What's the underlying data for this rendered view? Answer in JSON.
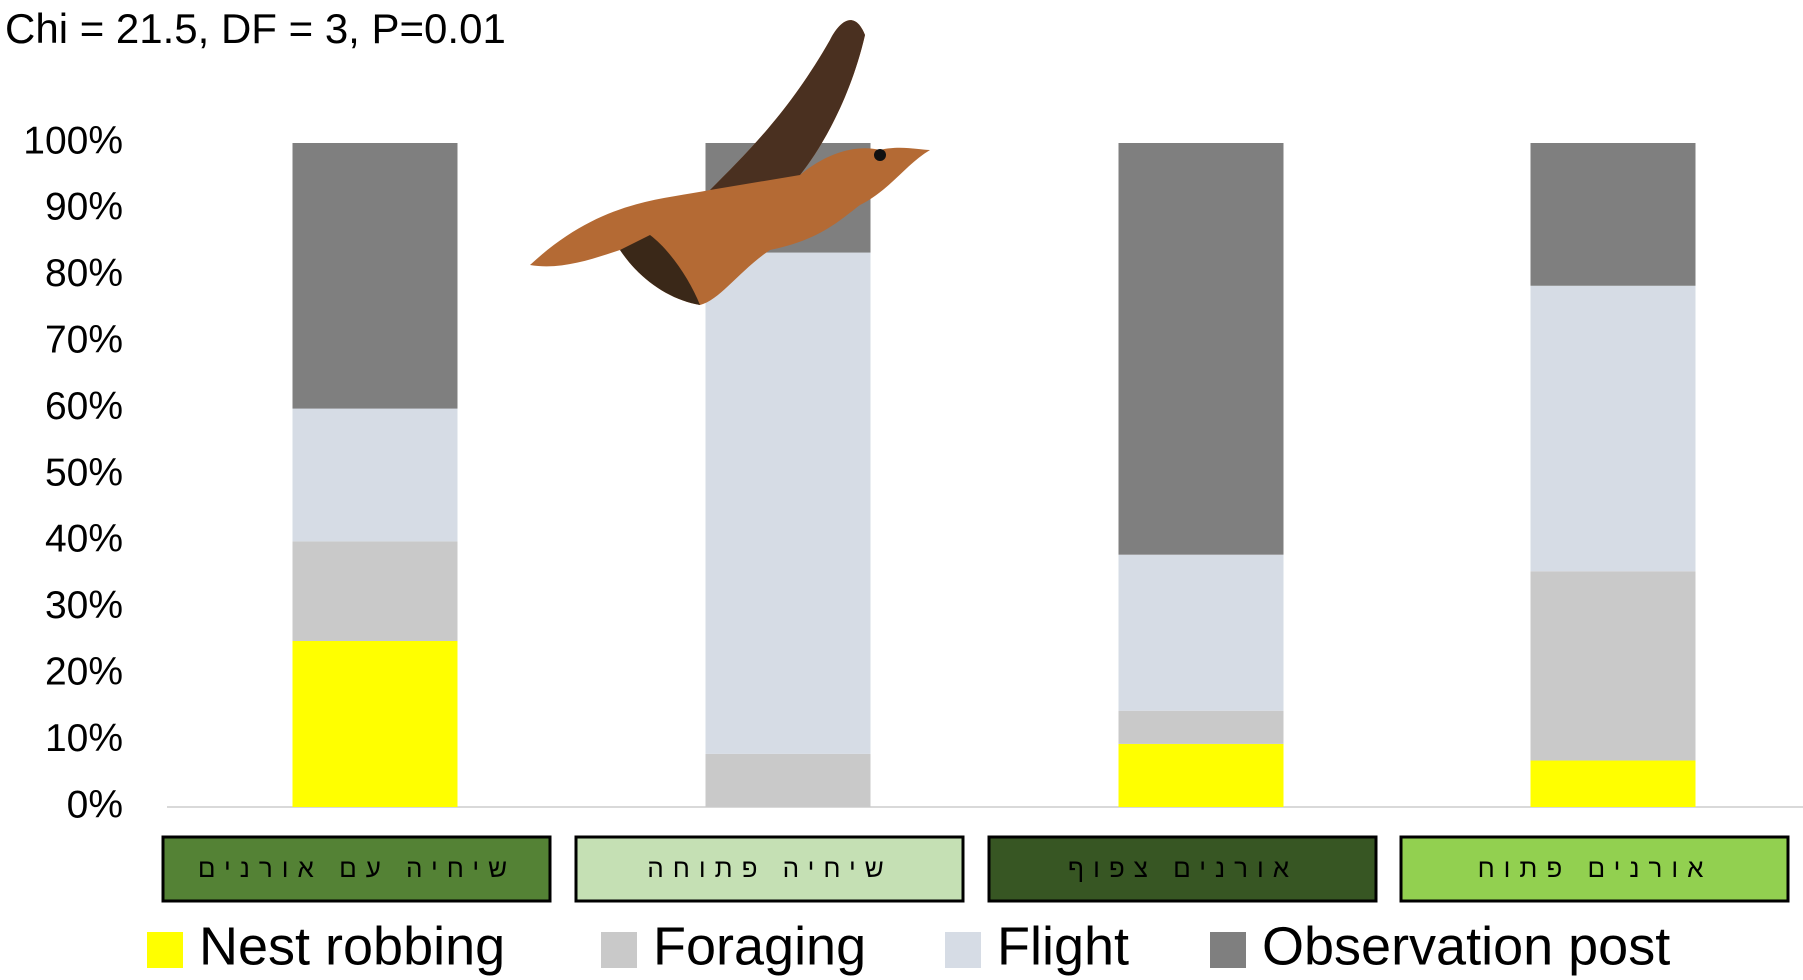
{
  "chart_data": {
    "type": "stacked_bar",
    "title": "Chi = 21.5, DF = 3, P=0.01",
    "categories": [
      "שיחיה עם אורנים",
      "שיחיה פתוחה",
      "אורנים צפוף",
      "אורנים פתוח"
    ],
    "category_colors": [
      "#548235",
      "#c5e0b4",
      "#375623",
      "#92d050"
    ],
    "series": [
      {
        "name": "Nest robbing",
        "color": "#ffff00",
        "values": [
          25,
          0,
          9.5,
          7
        ]
      },
      {
        "name": "Foraging",
        "color": "#c9c9c9",
        "values": [
          15,
          8,
          5,
          28.5
        ]
      },
      {
        "name": "Flight",
        "color": "#d6dce5",
        "values": [
          20,
          75.5,
          23.5,
          43
        ]
      },
      {
        "name": "Observation post",
        "color": "#7f7f7f",
        "values": [
          40,
          16.5,
          62,
          21.5
        ]
      }
    ],
    "ylim": [
      0,
      100
    ],
    "yticks": [
      {
        "value": 0,
        "label": "0%"
      },
      {
        "value": 10,
        "label": "10%"
      },
      {
        "value": 20,
        "label": "20%"
      },
      {
        "value": 30,
        "label": "30%"
      },
      {
        "value": 40,
        "label": "40%"
      },
      {
        "value": 50,
        "label": "50%"
      },
      {
        "value": 60,
        "label": "60%"
      },
      {
        "value": 70,
        "label": "70%"
      },
      {
        "value": 80,
        "label": "80%"
      },
      {
        "value": 90,
        "label": "90%"
      },
      {
        "value": 100,
        "label": "100%"
      }
    ],
    "legend": "bottom"
  }
}
